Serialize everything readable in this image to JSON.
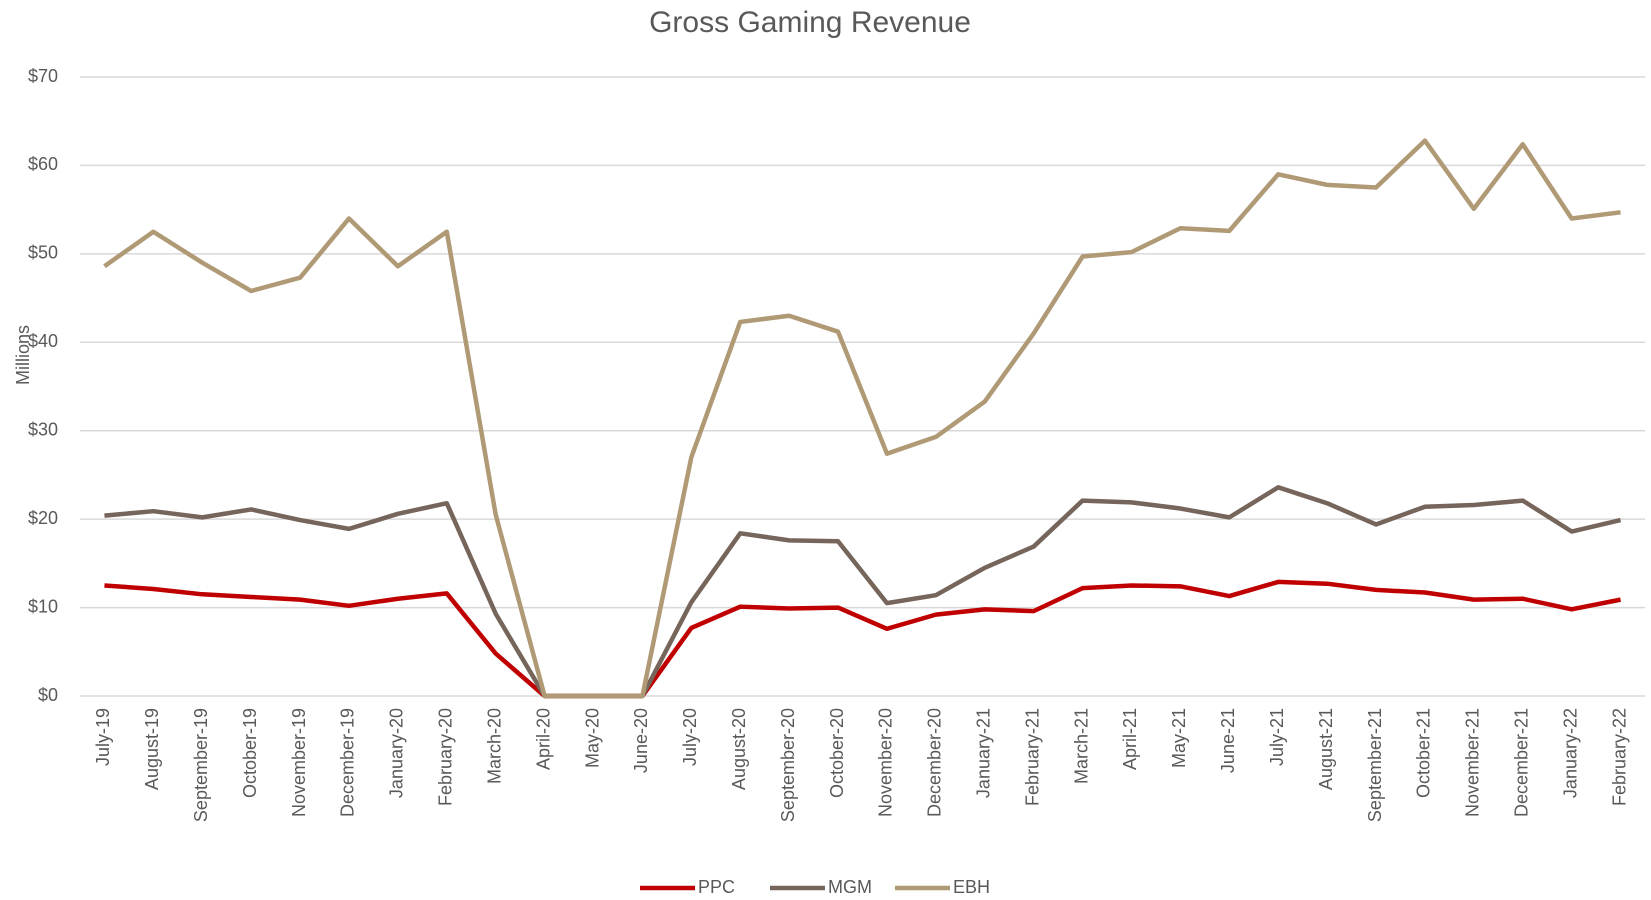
{
  "chart_data": {
    "type": "line",
    "title": "Gross Gaming Revenue",
    "y_label": "Millions",
    "categories": [
      "July-19",
      "August-19",
      "September-19",
      "October-19",
      "November-19",
      "December-19",
      "January-20",
      "February-20",
      "March-20",
      "April-20",
      "May-20",
      "June-20",
      "July-20",
      "August-20",
      "September-20",
      "October-20",
      "November-20",
      "December-20",
      "January-21",
      "February-21",
      "March-21",
      "April-21",
      "May-21",
      "June-21",
      "July-21",
      "August-21",
      "September-21",
      "October-21",
      "November-21",
      "December-21",
      "January-22",
      "February-22"
    ],
    "series": [
      {
        "name": "PPC",
        "color": "#c00000",
        "values": [
          12.5,
          12.1,
          11.5,
          11.2,
          10.9,
          10.2,
          11.0,
          11.6,
          4.8,
          0,
          0,
          0,
          7.7,
          10.1,
          9.9,
          10.0,
          7.6,
          9.2,
          9.8,
          9.6,
          12.2,
          12.5,
          12.4,
          11.3,
          12.9,
          12.7,
          12.0,
          11.7,
          10.9,
          11.0,
          9.8,
          10.9
        ]
      },
      {
        "name": "MGM",
        "color": "#76655b",
        "values": [
          20.4,
          20.9,
          20.2,
          21.1,
          19.9,
          18.9,
          20.6,
          21.8,
          9.3,
          0,
          0,
          0,
          10.6,
          18.4,
          17.6,
          17.5,
          10.5,
          11.4,
          14.5,
          16.9,
          22.1,
          21.9,
          21.2,
          20.2,
          23.6,
          21.8,
          19.4,
          21.4,
          21.6,
          22.1,
          18.6,
          19.9
        ]
      },
      {
        "name": "EBH",
        "color": "#b09a76",
        "values": [
          48.6,
          52.5,
          49.0,
          45.8,
          47.3,
          54.0,
          48.6,
          52.5,
          20.5,
          0,
          0,
          0,
          27.0,
          42.3,
          43.0,
          41.2,
          27.4,
          29.3,
          33.3,
          41.0,
          49.7,
          50.2,
          52.9,
          52.6,
          59.0,
          57.8,
          57.5,
          62.8,
          55.1,
          62.4,
          54.0,
          54.7
        ]
      }
    ],
    "ylim": [
      0,
      70
    ],
    "yticks": [
      {
        "value": 0,
        "label": "$0"
      },
      {
        "value": 10,
        "label": "$10"
      },
      {
        "value": 20,
        "label": "$20"
      },
      {
        "value": 30,
        "label": "$30"
      },
      {
        "value": 40,
        "label": "$40"
      },
      {
        "value": 50,
        "label": "$50"
      },
      {
        "value": 60,
        "label": "$60"
      },
      {
        "value": 70,
        "label": "$70"
      }
    ],
    "grid": true,
    "legend": "bottom"
  }
}
